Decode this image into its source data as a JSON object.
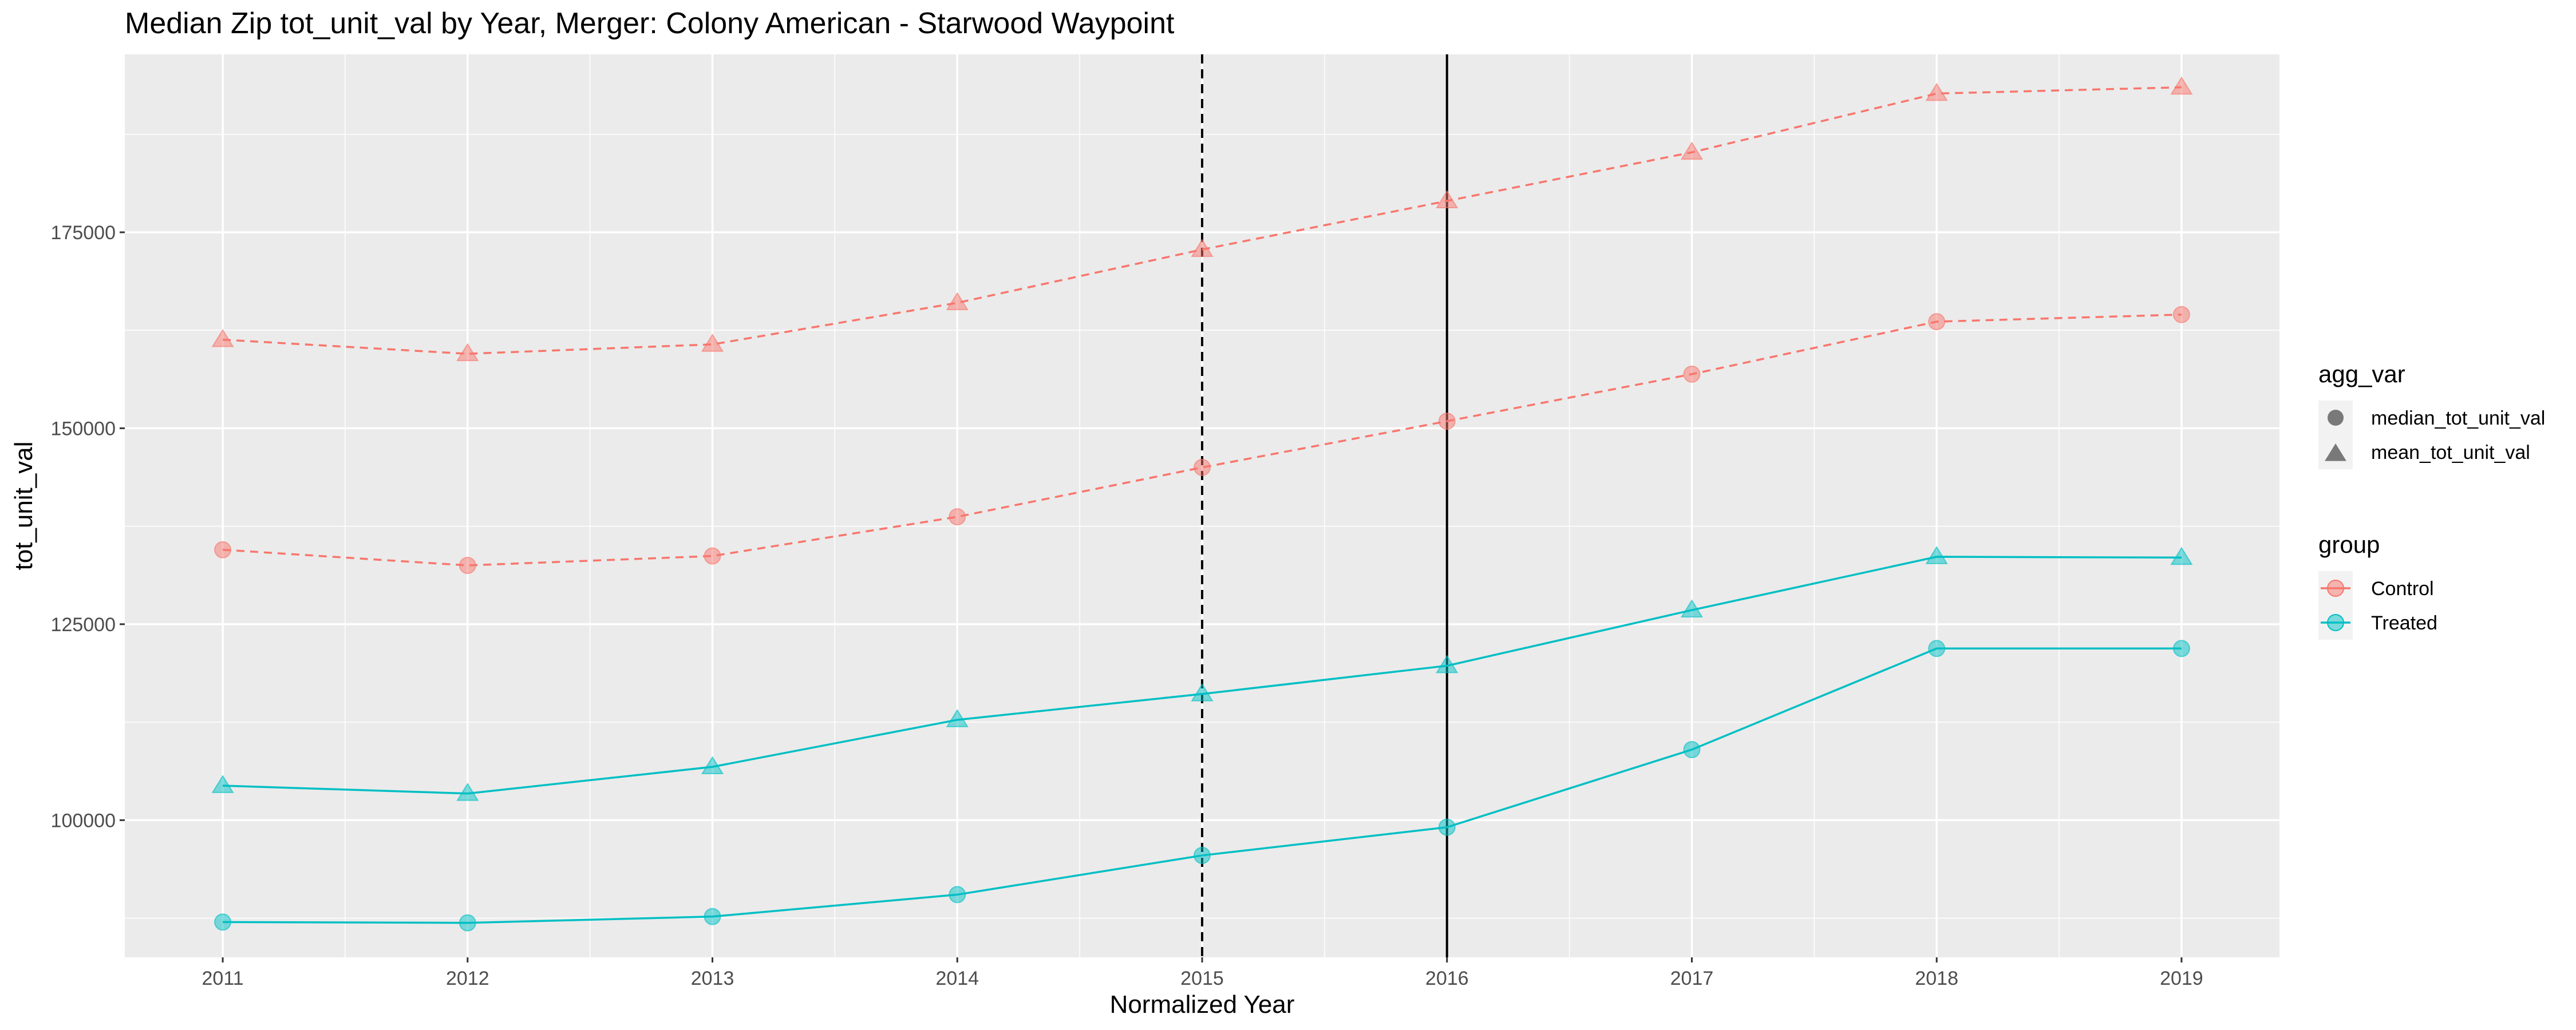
{
  "chart_data": {
    "type": "line",
    "title": "Median Zip tot_unit_val by Year, Merger: Colony American - Starwood Waypoint",
    "xlabel": "Normalized Year",
    "ylabel": "tot_unit_val",
    "x": [
      2011,
      2012,
      2013,
      2014,
      2015,
      2016,
      2017,
      2018,
      2019
    ],
    "xlim": [
      2010.6,
      2019.4
    ],
    "ylim": [
      82500,
      197700
    ],
    "yticks": [
      100000,
      125000,
      150000,
      175000
    ],
    "grid": true,
    "vlines": [
      {
        "x": 2015,
        "style": "dashed"
      },
      {
        "x": 2016,
        "style": "solid"
      }
    ],
    "series": [
      {
        "name": "Control",
        "agg_var": "mean_tot_unit_val",
        "color": "#F8766D",
        "linestyle": "dashed",
        "marker": "triangle",
        "values": [
          161300,
          159500,
          160700,
          166000,
          172800,
          179000,
          185200,
          192700,
          193500
        ]
      },
      {
        "name": "Control",
        "agg_var": "median_tot_unit_val",
        "color": "#F8766D",
        "linestyle": "dashed",
        "marker": "circle",
        "values": [
          134500,
          132500,
          133700,
          138700,
          145000,
          150900,
          156900,
          163600,
          164500
        ]
      },
      {
        "name": "Treated",
        "agg_var": "mean_tot_unit_val",
        "color": "#00BFC4",
        "linestyle": "solid",
        "marker": "triangle",
        "values": [
          104400,
          103400,
          106800,
          112800,
          116100,
          119700,
          126800,
          133600,
          133500
        ]
      },
      {
        "name": "Treated",
        "agg_var": "median_tot_unit_val",
        "color": "#00BFC4",
        "linestyle": "solid",
        "marker": "circle",
        "values": [
          87000,
          86900,
          87700,
          90500,
          95500,
          99100,
          109000,
          121900,
          121900
        ]
      }
    ],
    "legend": {
      "placement": "right",
      "agg_var": {
        "title": "agg_var",
        "items": [
          {
            "label": "median_tot_unit_val",
            "shape": "circle"
          },
          {
            "label": "mean_tot_unit_val",
            "shape": "triangle"
          }
        ]
      },
      "group": {
        "title": "group",
        "items": [
          {
            "label": "Control",
            "color": "#F8766D"
          },
          {
            "label": "Treated",
            "color": "#00BFC4"
          }
        ]
      }
    }
  }
}
